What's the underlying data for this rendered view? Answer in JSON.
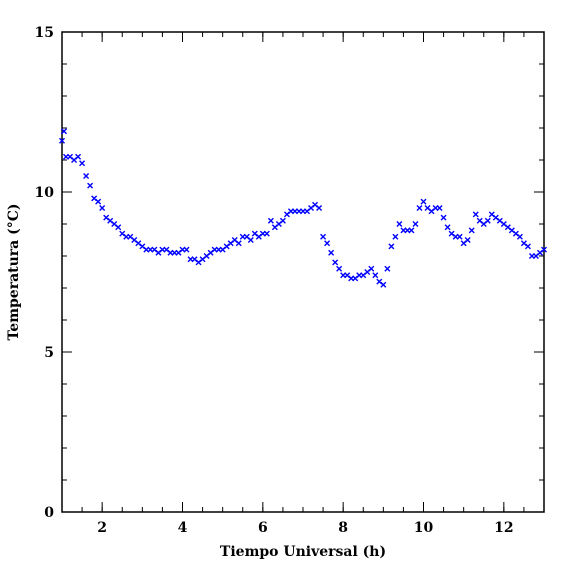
{
  "chart_data": {
    "type": "scatter",
    "x_label": "Tiempo Universal (h)",
    "y_label": "Temperatura (°C)",
    "xlim": [
      1,
      13
    ],
    "ylim": [
      0,
      15
    ],
    "xticks": [
      2,
      4,
      6,
      8,
      10,
      12
    ],
    "yticks": [
      0,
      5,
      10,
      15
    ],
    "marker": "x",
    "series": [
      {
        "color": "#0000ff",
        "x": [
          1.0,
          1.05,
          1.1,
          1.2,
          1.3,
          1.4,
          1.5,
          1.6,
          1.7,
          1.8,
          1.9,
          2.0,
          2.1,
          2.2,
          2.3,
          2.4,
          2.5,
          2.6,
          2.7,
          2.8,
          2.9,
          3.0,
          3.1,
          3.2,
          3.3,
          3.4,
          3.5,
          3.6,
          3.7,
          3.8,
          3.9,
          4.0,
          4.1,
          4.2,
          4.3,
          4.4,
          4.5,
          4.6,
          4.7,
          4.8,
          4.9,
          5.0,
          5.1,
          5.2,
          5.3,
          5.4,
          5.5,
          5.6,
          5.7,
          5.8,
          5.9,
          6.0,
          6.1,
          6.2,
          6.3,
          6.4,
          6.5,
          6.6,
          6.7,
          6.8,
          6.9,
          7.0,
          7.1,
          7.2,
          7.3,
          7.4,
          7.5,
          7.6,
          7.7,
          7.8,
          7.9,
          8.0,
          8.1,
          8.2,
          8.3,
          8.4,
          8.5,
          8.6,
          8.7,
          8.8,
          8.9,
          9.0,
          9.1,
          9.2,
          9.3,
          9.4,
          9.5,
          9.6,
          9.7,
          9.8,
          9.9,
          10.0,
          10.1,
          10.2,
          10.3,
          10.4,
          10.5,
          10.6,
          10.7,
          10.8,
          10.9,
          11.0,
          11.1,
          11.2,
          11.3,
          11.4,
          11.5,
          11.6,
          11.7,
          11.8,
          11.9,
          12.0,
          12.1,
          12.2,
          12.3,
          12.4,
          12.5,
          12.6,
          12.7,
          12.8,
          12.9,
          13.0
        ],
        "values": [
          11.6,
          11.9,
          11.1,
          11.1,
          11.0,
          11.1,
          10.9,
          10.5,
          10.2,
          9.8,
          9.7,
          9.5,
          9.2,
          9.1,
          9.0,
          8.9,
          8.7,
          8.6,
          8.6,
          8.5,
          8.4,
          8.3,
          8.2,
          8.2,
          8.2,
          8.1,
          8.2,
          8.2,
          8.1,
          8.1,
          8.1,
          8.2,
          8.2,
          7.9,
          7.9,
          7.8,
          7.9,
          8.0,
          8.1,
          8.2,
          8.2,
          8.2,
          8.3,
          8.4,
          8.5,
          8.4,
          8.6,
          8.6,
          8.5,
          8.7,
          8.6,
          8.7,
          8.7,
          9.1,
          8.9,
          9.0,
          9.1,
          9.3,
          9.4,
          9.4,
          9.4,
          9.4,
          9.4,
          9.5,
          9.6,
          9.5,
          8.6,
          8.4,
          8.1,
          7.8,
          7.6,
          7.4,
          7.4,
          7.3,
          7.3,
          7.4,
          7.4,
          7.5,
          7.6,
          7.4,
          7.2,
          7.1,
          7.6,
          8.3,
          8.6,
          9.0,
          8.8,
          8.8,
          8.8,
          9.0,
          9.5,
          9.7,
          9.5,
          9.4,
          9.5,
          9.5,
          9.2,
          8.9,
          8.7,
          8.6,
          8.6,
          8.4,
          8.5,
          8.8,
          9.3,
          9.1,
          9.0,
          9.1,
          9.3,
          9.2,
          9.1,
          9.0,
          8.9,
          8.8,
          8.7,
          8.6,
          8.4,
          8.3,
          8.0,
          8.0,
          8.1,
          8.2
        ]
      }
    ]
  }
}
